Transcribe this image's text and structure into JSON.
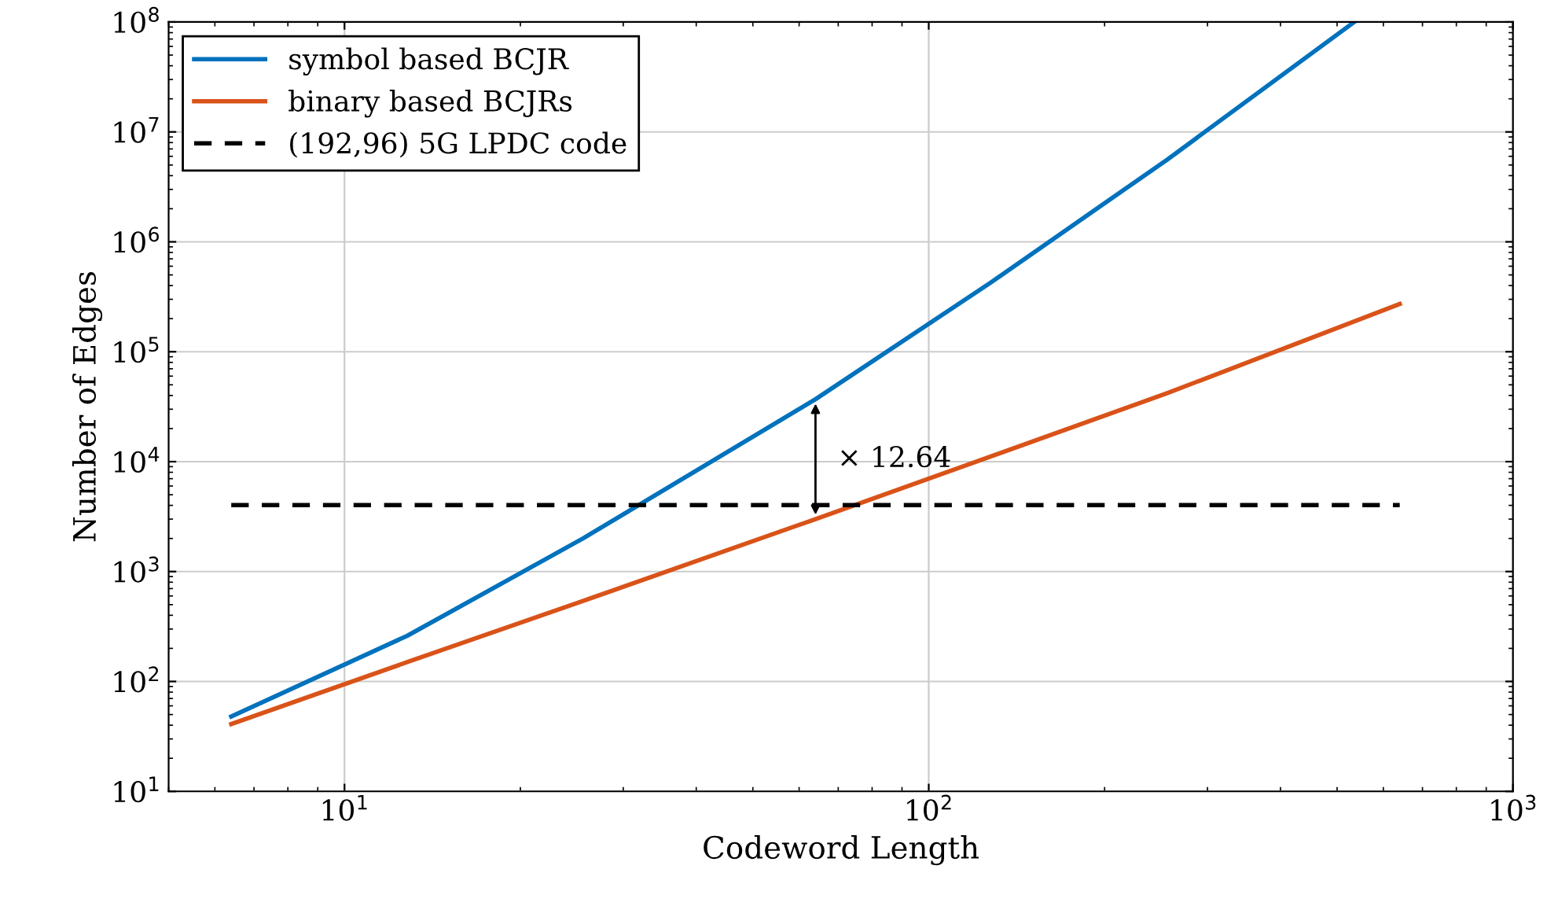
{
  "chart_data": {
    "type": "line",
    "xlabel": "Codeword Length",
    "ylabel": "Number of Edges",
    "log": "xy",
    "grid": true,
    "legend": "top left",
    "line_style": "solid",
    "marker": "none",
    "xlim": [
      5,
      1000
    ],
    "ylim": [
      10,
      100000000
    ],
    "xticks": [
      {
        "value": 10,
        "label": "10$^{1}$"
      },
      {
        "value": 100,
        "label": "10$^{2}$"
      },
      {
        "value": 1000,
        "label": "10$^{3}$"
      }
    ],
    "yticks": [
      {
        "value": 10,
        "label": "10$^{1}$"
      },
      {
        "value": 100,
        "label": "10$^{2}$"
      },
      {
        "value": 1000,
        "label": "10$^{3}$"
      },
      {
        "value": 10000,
        "label": "10$^{4}$"
      },
      {
        "value": 100000,
        "label": "10$^{5}$"
      },
      {
        "value": 1000000,
        "label": "10$^{6}$"
      },
      {
        "value": 10000000,
        "label": "10$^{7}$"
      },
      {
        "value": 100000000,
        "label": "10$^{8}$"
      }
    ],
    "series": [
      {
        "name": "symbol based BCJR",
        "color": "#0072bd",
        "x": [
          6.4,
          12.8,
          25.6,
          64,
          128,
          256,
          535
        ],
        "values": [
          48,
          260,
          2000,
          37000,
          430000,
          5600000,
          100000000
        ]
      },
      {
        "name": "binary based BCJRs",
        "color": "#d95319",
        "x": [
          6.4,
          12.8,
          25.6,
          64,
          128,
          256,
          640
        ],
        "values": [
          41,
          150,
          540,
          3000,
          11200,
          42000,
          272000
        ]
      },
      {
        "name": "(192,96) 5G LPDC code",
        "color": "#000000",
        "line_style": "dashed",
        "x": [
          6.4,
          640
        ],
        "values": [
          4020,
          4020
        ]
      }
    ],
    "annotations": [
      {
        "text": "× 12.64",
        "x": 64,
        "y": 37000
      }
    ]
  }
}
